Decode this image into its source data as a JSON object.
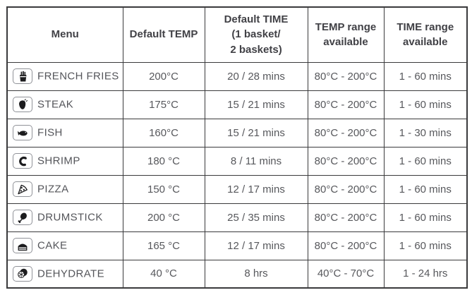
{
  "colors": {
    "table_border": "#3a3a3c",
    "header_text": "#414146",
    "body_text": "#57585c",
    "icon_frame": "#909298",
    "icon_glyph": "#1c1c1e",
    "background": "#ffffff"
  },
  "table": {
    "headers": [
      {
        "id": "menu",
        "label": "Menu"
      },
      {
        "id": "default_temp",
        "label": "Default TEMP"
      },
      {
        "id": "default_time",
        "label": "Default TIME\n(1 basket/\n2 baskets)"
      },
      {
        "id": "temp_range",
        "label": "TEMP range\navailable"
      },
      {
        "id": "time_range",
        "label": "TIME range\navailable"
      }
    ],
    "rows": [
      {
        "icon": "french-fries-icon",
        "menu": "FRENCH FRIES",
        "default_temp": "200°C",
        "default_time": "20 / 28 mins",
        "temp_range": "80°C - 200°C",
        "time_range": "1 - 60 mins"
      },
      {
        "icon": "steak-icon",
        "menu": "STEAK",
        "default_temp": "175°C",
        "default_time": "15 / 21 mins",
        "temp_range": "80°C - 200°C",
        "time_range": "1 - 60 mins"
      },
      {
        "icon": "fish-icon",
        "menu": "FISH",
        "default_temp": "160°C",
        "default_time": "15 / 21 mins",
        "temp_range": "80°C - 200°C",
        "time_range": "1 - 30 mins"
      },
      {
        "icon": "shrimp-icon",
        "menu": "SHRIMP",
        "default_temp": "180 °C",
        "default_time": "8 / 11 mins",
        "temp_range": "80°C - 200°C",
        "time_range": "1 - 60 mins"
      },
      {
        "icon": "pizza-icon",
        "menu": "PIZZA",
        "default_temp": "150 °C",
        "default_time": "12 / 17 mins",
        "temp_range": "80°C - 200°C",
        "time_range": "1 - 60 mins"
      },
      {
        "icon": "drumstick-icon",
        "menu": "DRUMSTICK",
        "default_temp": "200 °C",
        "default_time": "25 / 35 mins",
        "temp_range": "80°C - 200°C",
        "time_range": "1 - 60 mins"
      },
      {
        "icon": "cake-icon",
        "menu": "CAKE",
        "default_temp": "165 °C",
        "default_time": "12 / 17 mins",
        "temp_range": "80°C - 200°C",
        "time_range": "1 - 60 mins"
      },
      {
        "icon": "dehydrate-icon",
        "menu": "DEHYDRATE",
        "default_temp": "40 °C",
        "default_time": "8 hrs",
        "temp_range": "40°C - 70°C",
        "time_range": "1 - 24 hrs"
      }
    ]
  }
}
